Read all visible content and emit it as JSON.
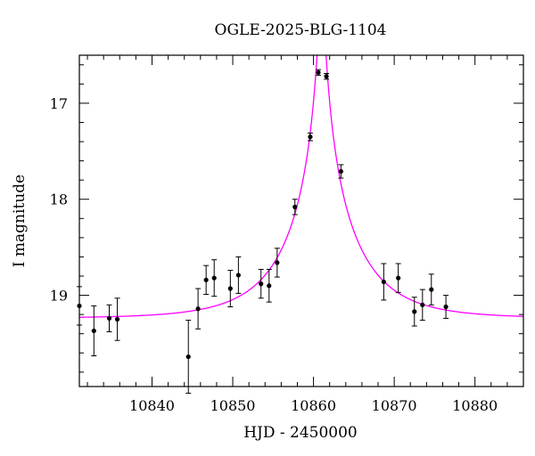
{
  "chart_data": {
    "type": "scatter",
    "title": "OGLE-2025-BLG-1104",
    "xlabel": "HJD - 2450000",
    "ylabel": "I magnitude",
    "xlim": [
      10831,
      10886
    ],
    "ylim": [
      19.95,
      16.5
    ],
    "y_inverted": true,
    "x_ticks": [
      10840,
      10850,
      10860,
      10870,
      10880
    ],
    "x_tick_labels": [
      "10840",
      "10850",
      "10860",
      "10870",
      "10880"
    ],
    "x_minor_step": 2,
    "y_ticks": [
      17,
      18,
      19
    ],
    "y_tick_labels": [
      "17",
      "18",
      "19"
    ],
    "y_minor_step": 0.2,
    "grid": false,
    "colors": {
      "model": "#ff00ff",
      "points": "#000000"
    },
    "model": {
      "type": "pspl",
      "t0": 10861.0,
      "u0": 0.048,
      "tE": 8.6,
      "I_base": 19.24
    },
    "points": [
      {
        "x": 10831.0,
        "y": 19.11,
        "err": 0.2
      },
      {
        "x": 10832.8,
        "y": 19.37,
        "err": 0.26
      },
      {
        "x": 10834.7,
        "y": 19.24,
        "err": 0.14
      },
      {
        "x": 10835.7,
        "y": 19.25,
        "err": 0.22
      },
      {
        "x": 10844.5,
        "y": 19.64,
        "err": 0.38
      },
      {
        "x": 10845.7,
        "y": 19.14,
        "err": 0.21
      },
      {
        "x": 10846.7,
        "y": 18.84,
        "err": 0.15
      },
      {
        "x": 10847.7,
        "y": 18.82,
        "err": 0.19
      },
      {
        "x": 10849.7,
        "y": 18.93,
        "err": 0.19
      },
      {
        "x": 10850.7,
        "y": 18.79,
        "err": 0.19
      },
      {
        "x": 10853.5,
        "y": 18.88,
        "err": 0.15
      },
      {
        "x": 10854.5,
        "y": 18.9,
        "err": 0.17
      },
      {
        "x": 10855.5,
        "y": 18.66,
        "err": 0.15
      },
      {
        "x": 10857.7,
        "y": 18.08,
        "err": 0.08
      },
      {
        "x": 10859.6,
        "y": 17.35,
        "err": 0.04
      },
      {
        "x": 10860.6,
        "y": 16.68,
        "err": 0.03
      },
      {
        "x": 10861.6,
        "y": 16.72,
        "err": 0.03
      },
      {
        "x": 10863.4,
        "y": 17.71,
        "err": 0.07
      },
      {
        "x": 10868.7,
        "y": 18.86,
        "err": 0.19
      },
      {
        "x": 10870.5,
        "y": 18.82,
        "err": 0.15
      },
      {
        "x": 10872.5,
        "y": 19.17,
        "err": 0.15
      },
      {
        "x": 10873.5,
        "y": 19.1,
        "err": 0.16
      },
      {
        "x": 10874.6,
        "y": 18.94,
        "err": 0.16
      },
      {
        "x": 10876.4,
        "y": 19.12,
        "err": 0.12
      }
    ]
  }
}
